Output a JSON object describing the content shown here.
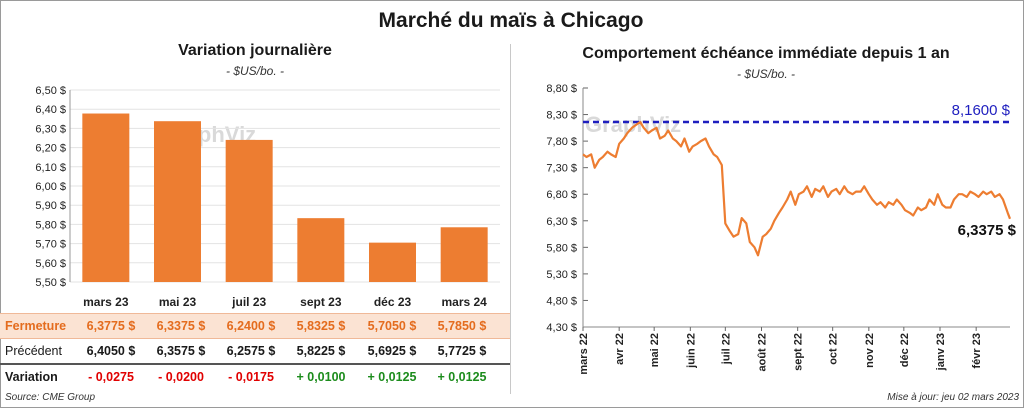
{
  "title": "Marché du maïs à Chicago",
  "source": "Source: CME Group",
  "updated": "Mise à jour: jeu 02 mars 2023",
  "colors": {
    "orange": "#ed7d31",
    "blue": "#1f1fbf",
    "negative": "#e00000",
    "positive": "#1c8c1c"
  },
  "table": {
    "close_label": "Fermeture",
    "prev_label": "Précédent",
    "var_label": "Variation",
    "close": [
      "6,3775  $",
      "6,3375  $",
      "6,2400  $",
      "5,8325  $",
      "5,7050  $",
      "5,7850  $"
    ],
    "prev": [
      "6,4050  $",
      "6,3575  $",
      "6,2575  $",
      "5,8225  $",
      "5,6925  $",
      "5,7725  $"
    ],
    "var": [
      "- 0,0275",
      "- 0,0200",
      "- 0,0175",
      "+ 0,0100",
      "+ 0,0125",
      "+ 0,0125"
    ]
  },
  "chart_data": [
    {
      "type": "bar",
      "title": "Variation  journalière",
      "subtitle": "- $US/bo. -",
      "watermark": "GraphViz",
      "categories": [
        "mars 23",
        "mai 23",
        "juil 23",
        "sept 23",
        "déc 23",
        "mars 24"
      ],
      "values": [
        6.3775,
        6.3375,
        6.24,
        5.8325,
        5.705,
        5.785
      ],
      "ylim": [
        5.5,
        6.5
      ],
      "yticks": [
        "6,50 $",
        "6,40 $",
        "6,30 $",
        "6,20 $",
        "6,10 $",
        "6,00 $",
        "5,90 $",
        "5,80 $",
        "5,70 $",
        "5,60 $",
        "5,50 $"
      ],
      "ytick_values": [
        6.5,
        6.4,
        6.3,
        6.2,
        6.1,
        6.0,
        5.9,
        5.8,
        5.7,
        5.6,
        5.5
      ],
      "grid": true
    },
    {
      "type": "line",
      "title": "Comportement  échéance immédiate depuis 1 an",
      "subtitle": "- $US/bo. -",
      "watermark": "GraphViz",
      "ylim": [
        4.3,
        8.8
      ],
      "yticks": [
        "8,80 $",
        "8,30 $",
        "7,80 $",
        "7,30 $",
        "6,80 $",
        "6,30 $",
        "5,80 $",
        "5,30 $",
        "4,80 $",
        "4,30 $"
      ],
      "ytick_values": [
        8.8,
        8.3,
        7.8,
        7.3,
        6.8,
        6.3,
        5.8,
        5.3,
        4.8,
        4.3
      ],
      "xticks": [
        "mars 22",
        "avr 22",
        "mai 22",
        "juin 22",
        "juil 22",
        "août 22",
        "sept 22",
        "oct 22",
        "nov 22",
        "déc 22",
        "janv 23",
        "févr 23"
      ],
      "max_value": 8.16,
      "max_label": "8,1600 $",
      "last_label": "6,3375 $",
      "series": [
        {
          "x": [
            "2022-03-01",
            "2022-03-04",
            "2022-03-08",
            "2022-03-11",
            "2022-03-15",
            "2022-03-18",
            "2022-03-22",
            "2022-03-25",
            "2022-03-29",
            "2022-04-01",
            "2022-04-05",
            "2022-04-08",
            "2022-04-12",
            "2022-04-15",
            "2022-04-19",
            "2022-04-22",
            "2022-04-26",
            "2022-04-29",
            "2022-05-03",
            "2022-05-06",
            "2022-05-10",
            "2022-05-13",
            "2022-05-17",
            "2022-05-20",
            "2022-05-24",
            "2022-05-27",
            "2022-05-31",
            "2022-06-03",
            "2022-06-07",
            "2022-06-10",
            "2022-06-14",
            "2022-06-17",
            "2022-06-21",
            "2022-06-24",
            "2022-06-28",
            "2022-07-01",
            "2022-07-05",
            "2022-07-08",
            "2022-07-12",
            "2022-07-15",
            "2022-07-19",
            "2022-07-22",
            "2022-07-26",
            "2022-07-29",
            "2022-08-02",
            "2022-08-05",
            "2022-08-09",
            "2022-08-12",
            "2022-08-16",
            "2022-08-19",
            "2022-08-23",
            "2022-08-26",
            "2022-08-30",
            "2022-09-02",
            "2022-09-06",
            "2022-09-09",
            "2022-09-13",
            "2022-09-16",
            "2022-09-20",
            "2022-09-23",
            "2022-09-27",
            "2022-09-30",
            "2022-10-04",
            "2022-10-07",
            "2022-10-11",
            "2022-10-14",
            "2022-10-18",
            "2022-10-21",
            "2022-10-25",
            "2022-10-28",
            "2022-11-01",
            "2022-11-04",
            "2022-11-08",
            "2022-11-11",
            "2022-11-15",
            "2022-11-18",
            "2022-11-22",
            "2022-11-25",
            "2022-11-29",
            "2022-12-02",
            "2022-12-06",
            "2022-12-09",
            "2022-12-13",
            "2022-12-16",
            "2022-12-20",
            "2022-12-23",
            "2022-12-27",
            "2022-12-30",
            "2023-01-03",
            "2023-01-06",
            "2023-01-10",
            "2023-01-13",
            "2023-01-17",
            "2023-01-20",
            "2023-01-24",
            "2023-01-27",
            "2023-01-31",
            "2023-02-03",
            "2023-02-07",
            "2023-02-10",
            "2023-02-14",
            "2023-02-17",
            "2023-02-21",
            "2023-02-24",
            "2023-02-28",
            "2023-03-02"
          ],
          "values": [
            7.55,
            7.5,
            7.55,
            7.3,
            7.45,
            7.5,
            7.6,
            7.55,
            7.5,
            7.75,
            7.85,
            7.95,
            8.05,
            8.1,
            8.16,
            8.05,
            7.95,
            8.0,
            8.05,
            7.85,
            7.9,
            8.0,
            7.85,
            7.8,
            7.7,
            7.85,
            7.6,
            7.7,
            7.75,
            7.8,
            7.85,
            7.7,
            7.55,
            7.5,
            7.35,
            6.25,
            6.1,
            6.0,
            6.05,
            6.35,
            6.25,
            5.9,
            5.8,
            5.65,
            6.0,
            6.05,
            6.15,
            6.3,
            6.45,
            6.55,
            6.7,
            6.85,
            6.6,
            6.8,
            6.85,
            6.95,
            6.75,
            6.9,
            6.85,
            6.95,
            6.75,
            6.85,
            6.9,
            6.8,
            6.95,
            6.85,
            6.8,
            6.85,
            6.85,
            6.95,
            6.8,
            6.7,
            6.6,
            6.65,
            6.55,
            6.65,
            6.6,
            6.7,
            6.6,
            6.5,
            6.45,
            6.4,
            6.55,
            6.5,
            6.55,
            6.7,
            6.6,
            6.8,
            6.6,
            6.55,
            6.55,
            6.7,
            6.8,
            6.8,
            6.75,
            6.85,
            6.8,
            6.75,
            6.85,
            6.8,
            6.85,
            6.75,
            6.8,
            6.7,
            6.45,
            6.3375
          ]
        }
      ]
    }
  ]
}
